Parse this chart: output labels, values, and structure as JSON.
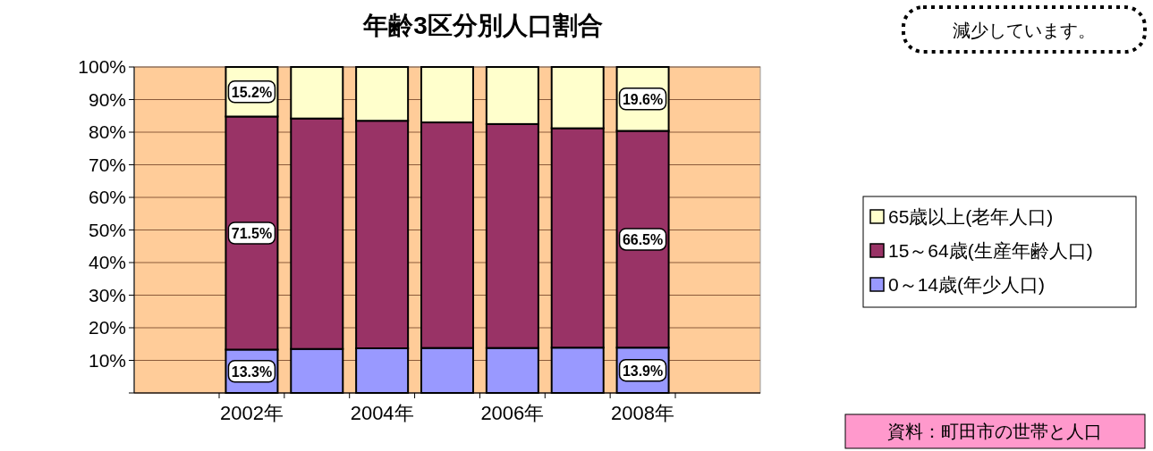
{
  "chart_data": {
    "type": "bar",
    "stacked": true,
    "title": "年齢3区分別人口割合",
    "categories": [
      "2002年",
      null,
      "2004年",
      null,
      "2006年",
      null,
      "2008年"
    ],
    "series": [
      {
        "name": "0～14歳(年少人口)",
        "color": "#9999ff",
        "values": [
          13.3,
          13.5,
          13.7,
          13.8,
          13.8,
          13.9,
          13.9
        ],
        "value_labels": [
          "13.3%",
          null,
          null,
          null,
          null,
          null,
          "13.9%"
        ]
      },
      {
        "name": "15～64歳(生産年齢人口)",
        "color": "#993366",
        "values": [
          71.5,
          70.7,
          69.8,
          69.2,
          68.7,
          67.3,
          66.5
        ],
        "value_labels": [
          "71.5%",
          null,
          null,
          null,
          null,
          null,
          "66.5%"
        ]
      },
      {
        "name": "65歳以上(老年人口)",
        "color": "#ffffcc",
        "values": [
          15.2,
          15.8,
          16.5,
          17.0,
          17.5,
          18.8,
          19.6
        ],
        "value_labels": [
          "15.2%",
          null,
          null,
          null,
          null,
          null,
          "19.6%"
        ]
      }
    ],
    "ylim": [
      0,
      100
    ],
    "yticks": [
      {
        "value": 0,
        "label": null
      },
      {
        "value": 10,
        "label": "10%"
      },
      {
        "value": 20,
        "label": "20%"
      },
      {
        "value": 30,
        "label": "30%"
      },
      {
        "value": 40,
        "label": "40%"
      },
      {
        "value": 50,
        "label": "50%"
      },
      {
        "value": 60,
        "label": "60%"
      },
      {
        "value": 70,
        "label": "70%"
      },
      {
        "value": 80,
        "label": "80%"
      },
      {
        "value": 90,
        "label": "90%"
      },
      {
        "value": 100,
        "label": "100%"
      }
    ],
    "grid": "y",
    "legend": "right",
    "annotations": [
      "減少しています。",
      "資料：町田市の世帯と人口"
    ]
  }
}
